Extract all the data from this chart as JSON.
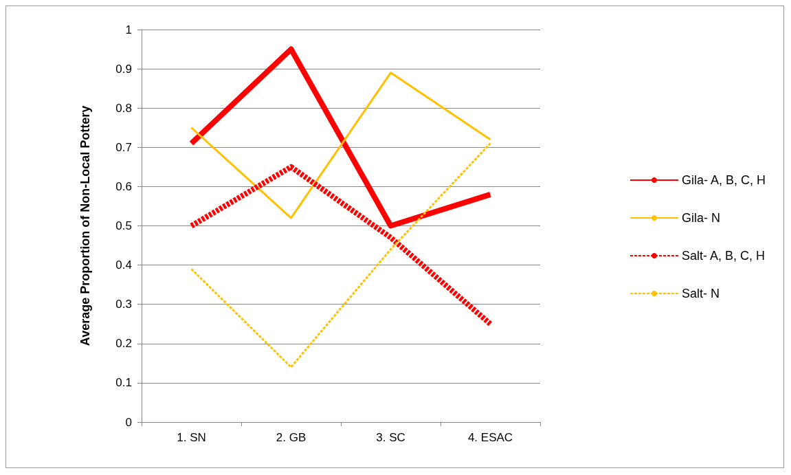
{
  "chart_data": {
    "type": "line",
    "ylabel": "Average Proportion of Non-Local Pottery",
    "categories": [
      "1. SN",
      "2. GB",
      "3. SC",
      "4. ESAC"
    ],
    "series": [
      {
        "name": "Gila- A, B, C, H",
        "color": "#ff0000",
        "line_style": "solid",
        "values": [
          0.71,
          0.95,
          0.5,
          0.58
        ]
      },
      {
        "name": "Gila- N",
        "color": "#ffc000",
        "line_style": "solid",
        "values": [
          0.75,
          0.52,
          0.89,
          0.72
        ]
      },
      {
        "name": "Salt- A, B, C, H",
        "color": "#ff0000",
        "line_style": "dashed",
        "values": [
          0.5,
          0.65,
          0.47,
          0.25
        ]
      },
      {
        "name": "Salt- N",
        "color": "#ffc000",
        "line_style": "dashed",
        "values": [
          0.39,
          0.14,
          0.44,
          0.71
        ]
      }
    ],
    "ylim": [
      0,
      1
    ],
    "yticks": [
      0,
      0.1,
      0.2,
      0.3,
      0.4,
      0.5,
      0.6,
      0.7,
      0.8,
      0.9,
      1
    ],
    "grid": "y",
    "legend": "right",
    "marker": "none"
  }
}
